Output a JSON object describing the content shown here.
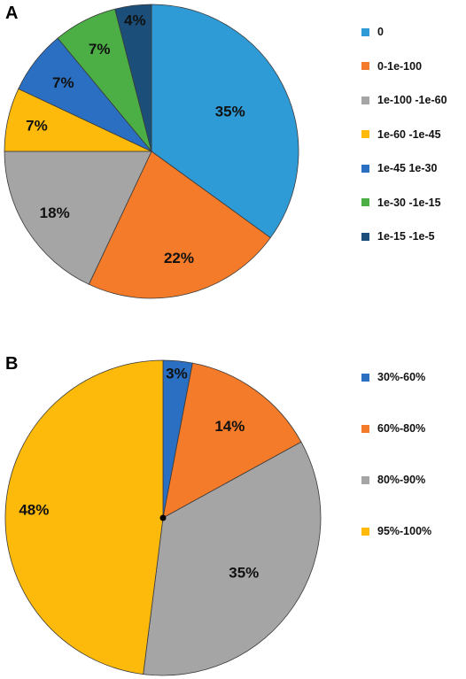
{
  "chart_data": [
    {
      "type": "pie",
      "panel_label": "A",
      "slices": [
        {
          "label": "0",
          "value": 35,
          "display": "35%",
          "color": "#2E9BD6"
        },
        {
          "label": "0-1e-100",
          "value": 22,
          "display": "22%",
          "color": "#F47B29"
        },
        {
          "label": "1e-100 -1e-60",
          "value": 18,
          "display": "18%",
          "color": "#A5A5A5"
        },
        {
          "label": "1e-60 -1e-45",
          "value": 7,
          "display": "7%",
          "color": "#FDBA0A"
        },
        {
          "label": "1e-45 1e-30",
          "value": 7,
          "display": "7%",
          "color": "#2A6FC2"
        },
        {
          "label": "1e-30 -1e-15",
          "value": 7,
          "display": "7%",
          "color": "#4CAF45"
        },
        {
          "label": "1e-15 -1e-5",
          "value": 4,
          "display": "4%",
          "color": "#1B4F7A"
        }
      ],
      "legend_position": "right"
    },
    {
      "type": "pie",
      "panel_label": "B",
      "slices": [
        {
          "label": "30%-60%",
          "value": 3,
          "display": "3%",
          "color": "#2A6FC2"
        },
        {
          "label": "60%-80%",
          "value": 14,
          "display": "14%",
          "color": "#F47B29"
        },
        {
          "label": "80%-90%",
          "value": 35,
          "display": "35%",
          "color": "#A5A5A5"
        },
        {
          "label": "95%-100%",
          "value": 48,
          "display": "48%",
          "color": "#FDBA0A"
        }
      ],
      "legend_position": "right"
    }
  ]
}
